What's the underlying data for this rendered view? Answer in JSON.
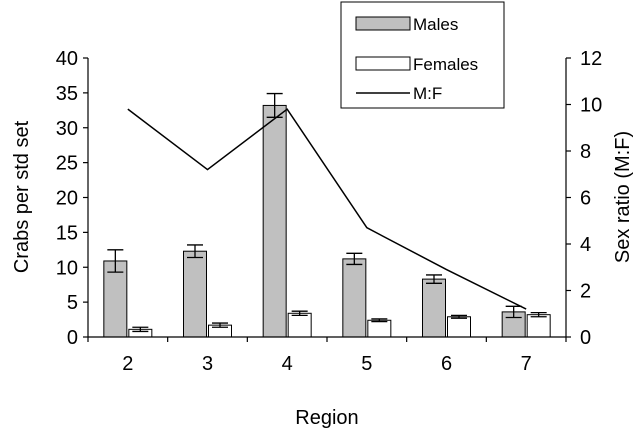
{
  "chart_data": {
    "type": "bar",
    "categories": [
      "2",
      "3",
      "4",
      "5",
      "6",
      "7"
    ],
    "xlabel": "Region",
    "ylabel": "Crabs per std set",
    "y2label": "Sex ratio (M:F)",
    "ylim": [
      0,
      40
    ],
    "y2lim": [
      0,
      12
    ],
    "yticks": [
      "0",
      "5",
      "10",
      "15",
      "20",
      "25",
      "30",
      "35",
      "40"
    ],
    "y2ticks": [
      "0",
      "2",
      "4",
      "6",
      "8",
      "10",
      "12"
    ],
    "grid": false,
    "legend_position": "top-right",
    "series": [
      {
        "name": "Males",
        "kind": "bar",
        "axis": "left",
        "color": "#c0c0c0",
        "values": [
          10.9,
          12.3,
          33.2,
          11.2,
          8.3,
          3.6
        ],
        "errors": [
          1.6,
          0.9,
          1.7,
          0.8,
          0.6,
          0.8
        ]
      },
      {
        "name": "Females",
        "kind": "bar",
        "axis": "left",
        "color": "#ffffff",
        "values": [
          1.1,
          1.7,
          3.4,
          2.4,
          2.9,
          3.2
        ],
        "errors": [
          0.3,
          0.3,
          0.3,
          0.2,
          0.2,
          0.3
        ]
      },
      {
        "name": "M:F",
        "kind": "line",
        "axis": "right",
        "color": "#000000",
        "values": [
          9.8,
          7.2,
          9.8,
          4.7,
          2.9,
          1.2
        ]
      }
    ]
  }
}
